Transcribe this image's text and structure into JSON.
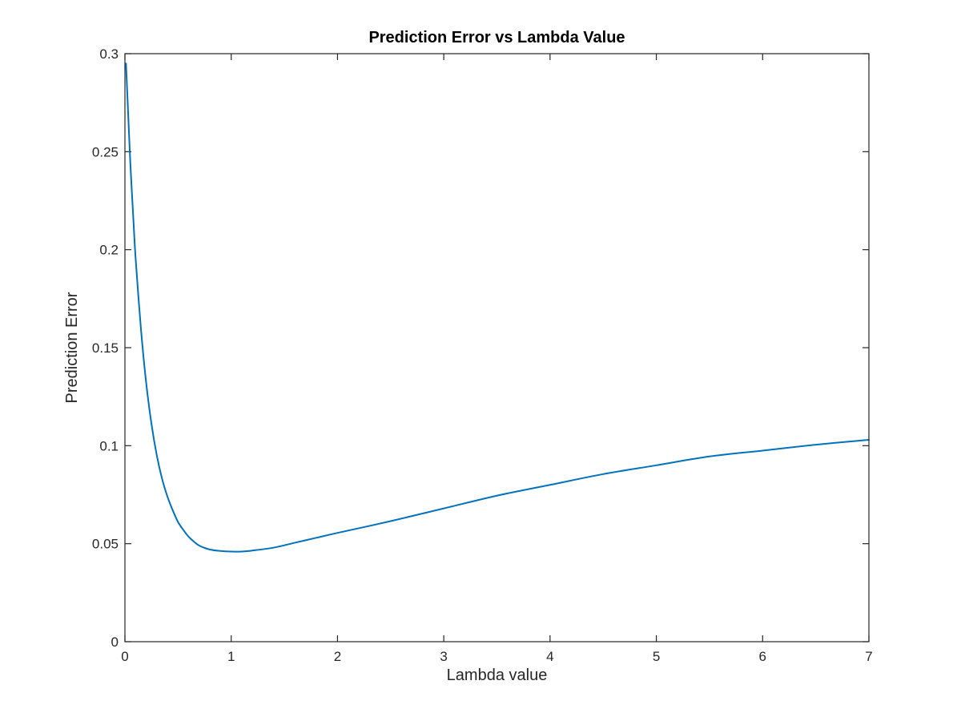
{
  "chart_data": {
    "type": "line",
    "title": "Prediction Error vs Lambda Value",
    "xlabel": "Lambda value",
    "ylabel": "Prediction Error",
    "xlim": [
      0,
      7
    ],
    "ylim": [
      0,
      0.3
    ],
    "xticks": [
      "0",
      "1",
      "2",
      "3",
      "4",
      "5",
      "6",
      "7"
    ],
    "yticks": [
      "0",
      "0.05",
      "0.1",
      "0.15",
      "0.2",
      "0.25",
      "0.3"
    ],
    "grid": false,
    "box": true,
    "series": [
      {
        "color": "#0072BD",
        "x": [
          0.01,
          0.03,
          0.05,
          0.08,
          0.1,
          0.15,
          0.2,
          0.25,
          0.3,
          0.35,
          0.4,
          0.45,
          0.5,
          0.55,
          0.6,
          0.65,
          0.7,
          0.8,
          0.9,
          1.0,
          1.1,
          1.2,
          1.4,
          1.6,
          1.8,
          2.0,
          2.5,
          3.0,
          3.5,
          4.0,
          4.5,
          5.0,
          5.5,
          6.0,
          6.5,
          7.0
        ],
        "y": [
          0.295,
          0.27,
          0.245,
          0.215,
          0.196,
          0.16,
          0.132,
          0.111,
          0.095,
          0.083,
          0.074,
          0.067,
          0.061,
          0.057,
          0.0535,
          0.051,
          0.049,
          0.047,
          0.0463,
          0.046,
          0.046,
          0.0465,
          0.048,
          0.0505,
          0.053,
          0.0555,
          0.0615,
          0.068,
          0.0745,
          0.08,
          0.0855,
          0.09,
          0.0945,
          0.0975,
          0.1005,
          0.103
        ]
      }
    ]
  }
}
